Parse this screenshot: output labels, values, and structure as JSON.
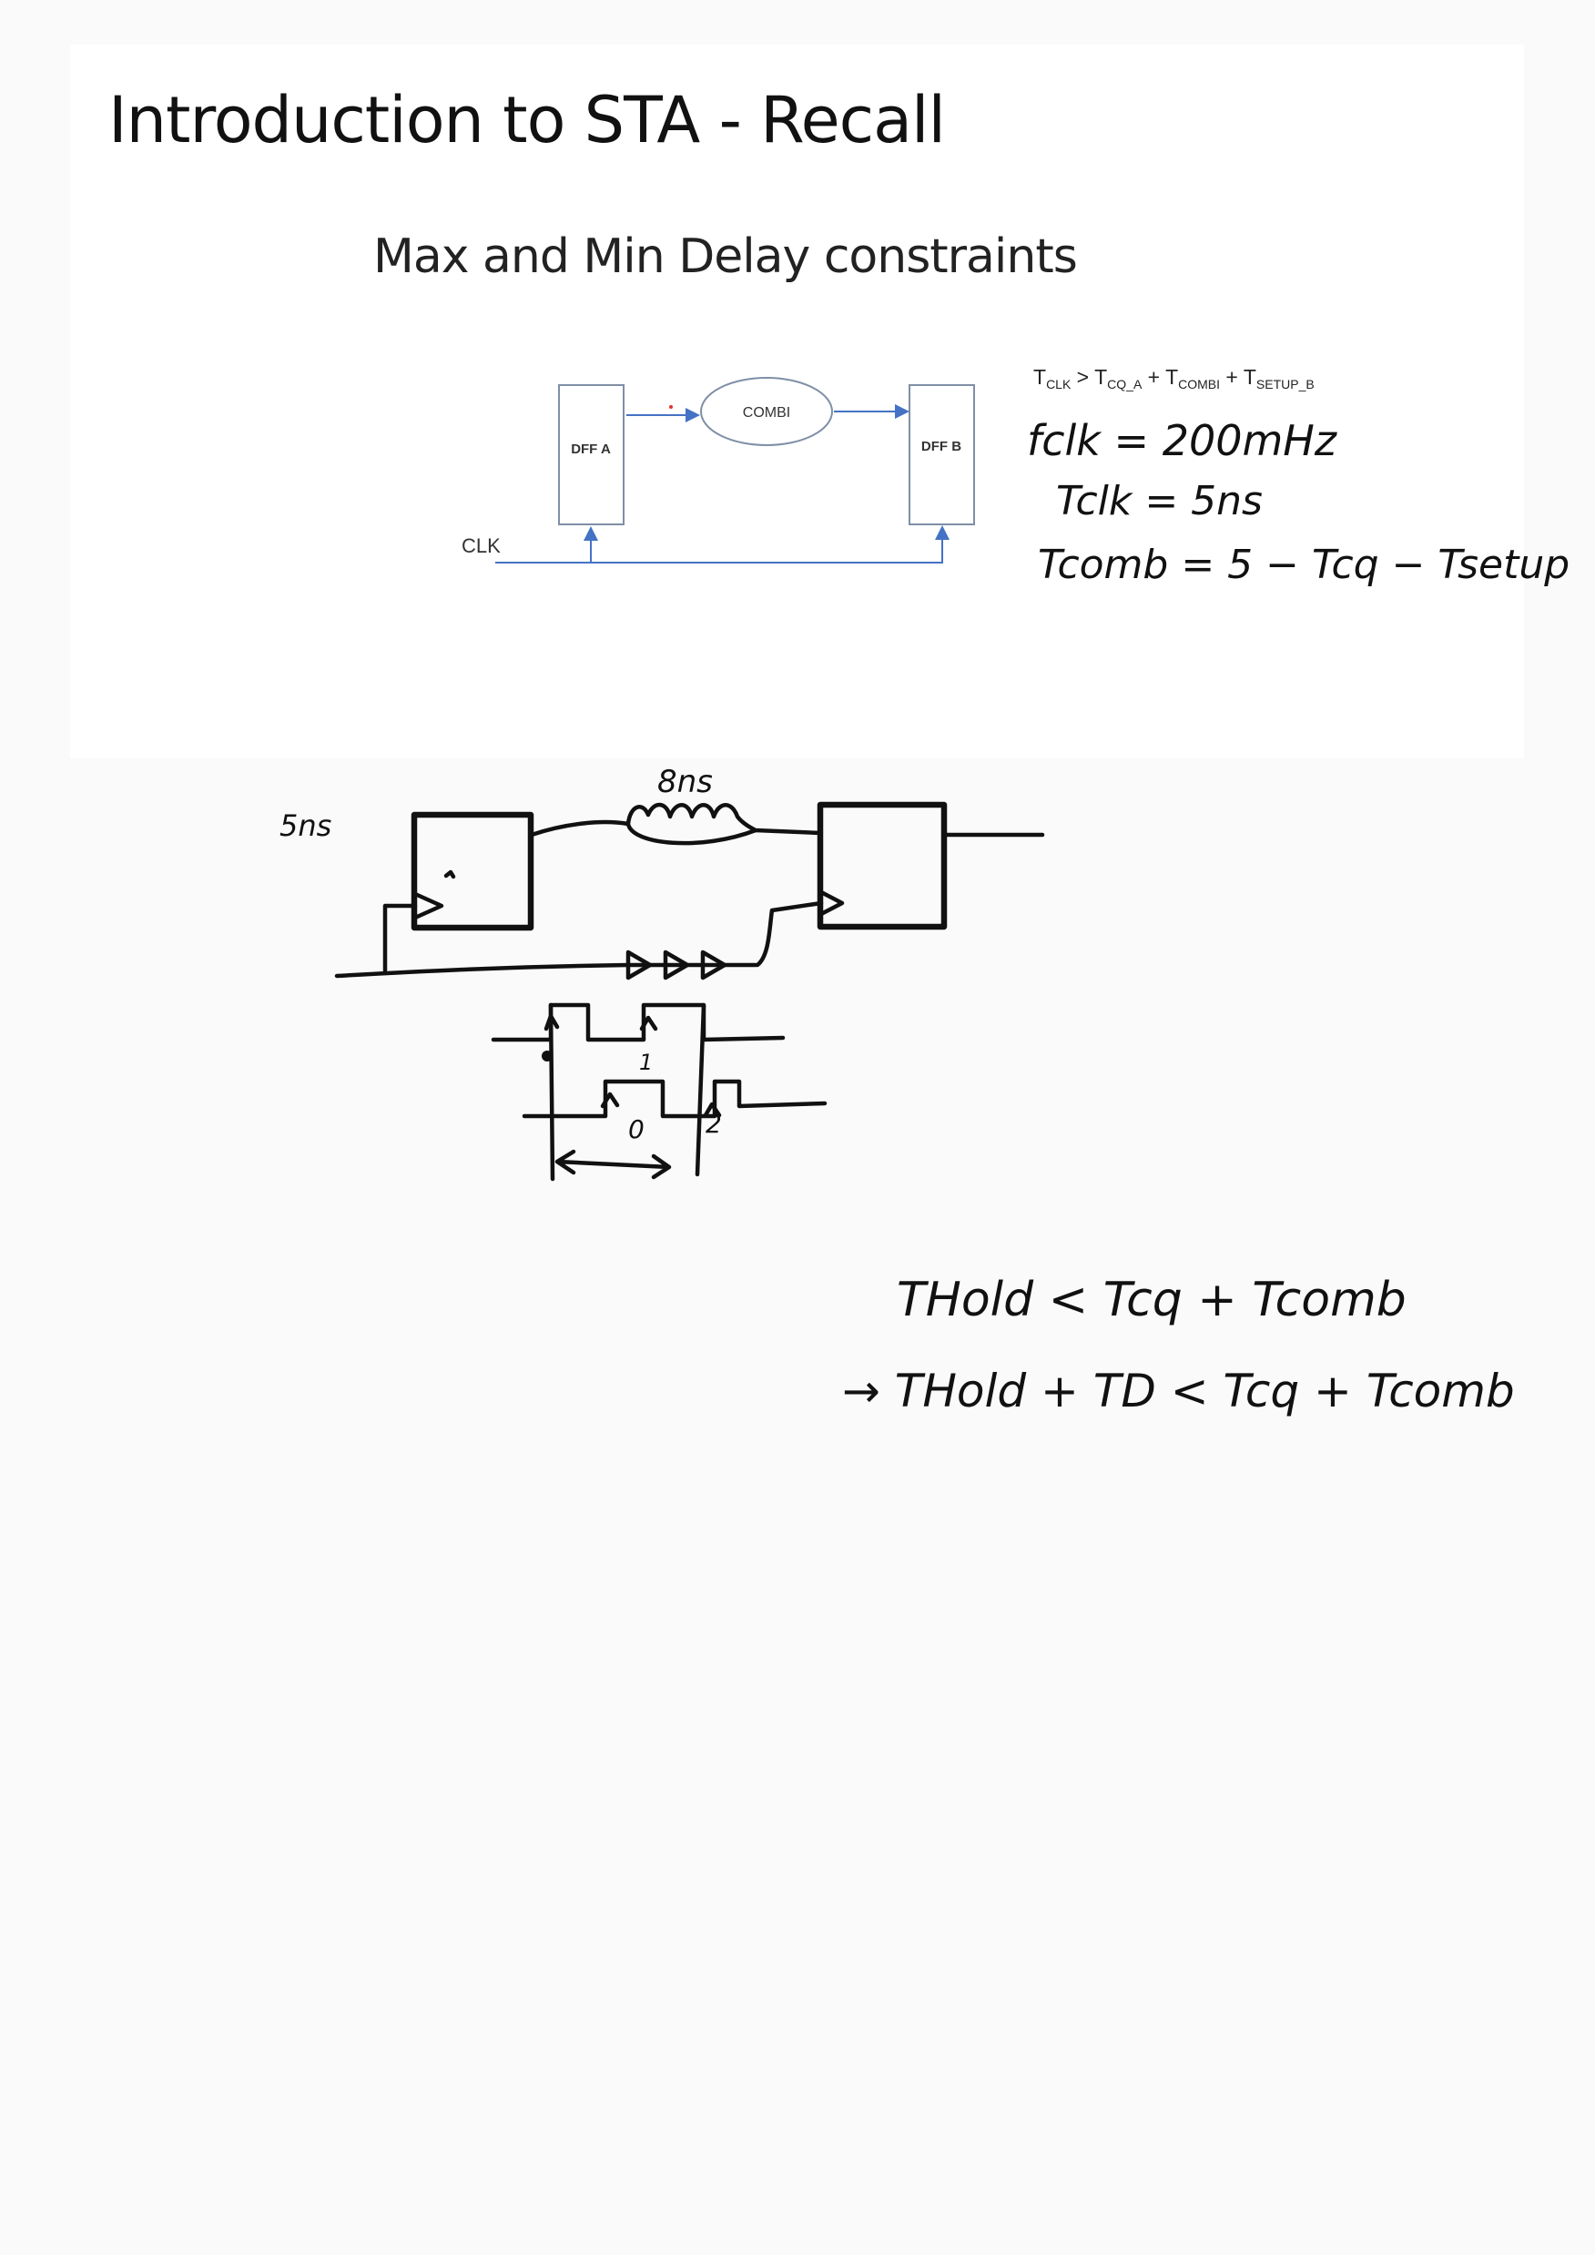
{
  "slide": {
    "title": "Introduction to STA - Recall",
    "subtitle": "Max and Min Delay constraints",
    "diagram": {
      "dff_a_label": "DFF A",
      "dff_b_label": "DFF B",
      "combi_label": "COMBI",
      "clk_label": "CLK"
    },
    "equation": {
      "T": "T",
      "clk_sub": "CLK",
      "gt": " > ",
      "cq_sub": "CQ_A",
      "plus1": " + ",
      "combi_sub": "COMBI",
      "plus2": " + ",
      "setup_sub": "SETUP_B"
    }
  },
  "notes": {
    "fclk": "fclk = 200mHz",
    "tclk": "Tclk = 5ns",
    "tcomb": "Tcomb = 5 − Tcq − Tsetup",
    "delay_8ns": "8ns",
    "clk_5ns": "5ns",
    "mark_1": "1",
    "mark_0": "0",
    "mark_2": "2",
    "hold_eq1": "THold < Tcq + Tcomb",
    "hold_eq2": "→ THold + TD < Tcq + Tcomb"
  }
}
